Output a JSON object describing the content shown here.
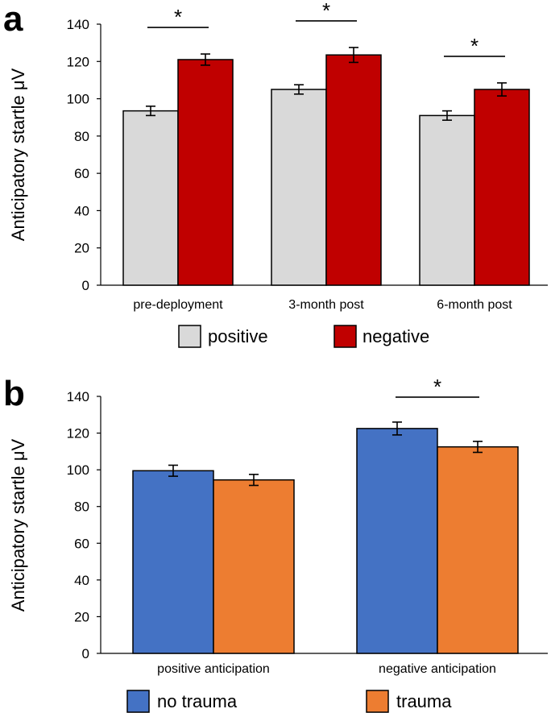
{
  "chart_data": [
    {
      "panel_label": "a",
      "type": "bar",
      "ylabel": "Anticipatory startle μV",
      "ylim": [
        0,
        140
      ],
      "yticks": [
        0,
        20,
        40,
        60,
        80,
        100,
        120,
        140
      ],
      "categories": [
        "pre-deployment",
        "3-month post",
        "6-month post"
      ],
      "series": [
        {
          "name": "positive",
          "color": "#d9d9d9",
          "values": [
            93.5,
            105,
            91
          ],
          "errors": [
            2.5,
            2.5,
            2.5
          ]
        },
        {
          "name": "negative",
          "color": "#c00000",
          "values": [
            121,
            123.5,
            105
          ],
          "errors": [
            3,
            4,
            3.5
          ]
        }
      ],
      "significance": [
        {
          "category_index": 0,
          "label": "*"
        },
        {
          "category_index": 1,
          "label": "*"
        },
        {
          "category_index": 2,
          "label": "*"
        }
      ],
      "legend_position": "bottom"
    },
    {
      "panel_label": "b",
      "type": "bar",
      "ylabel": "Anticipatory startle μV",
      "ylim": [
        0,
        140
      ],
      "yticks": [
        0,
        20,
        40,
        60,
        80,
        100,
        120,
        140
      ],
      "categories": [
        "positive anticipation",
        "negative anticipation"
      ],
      "series": [
        {
          "name": "no trauma",
          "color": "#4472c4",
          "values": [
            99.5,
            122.5
          ],
          "errors": [
            3,
            3.5
          ]
        },
        {
          "name": "trauma",
          "color": "#ed7d31",
          "values": [
            94.5,
            112.5
          ],
          "errors": [
            3,
            3
          ]
        }
      ],
      "significance": [
        {
          "category_index": 1,
          "label": "*"
        }
      ],
      "legend_position": "bottom"
    }
  ]
}
